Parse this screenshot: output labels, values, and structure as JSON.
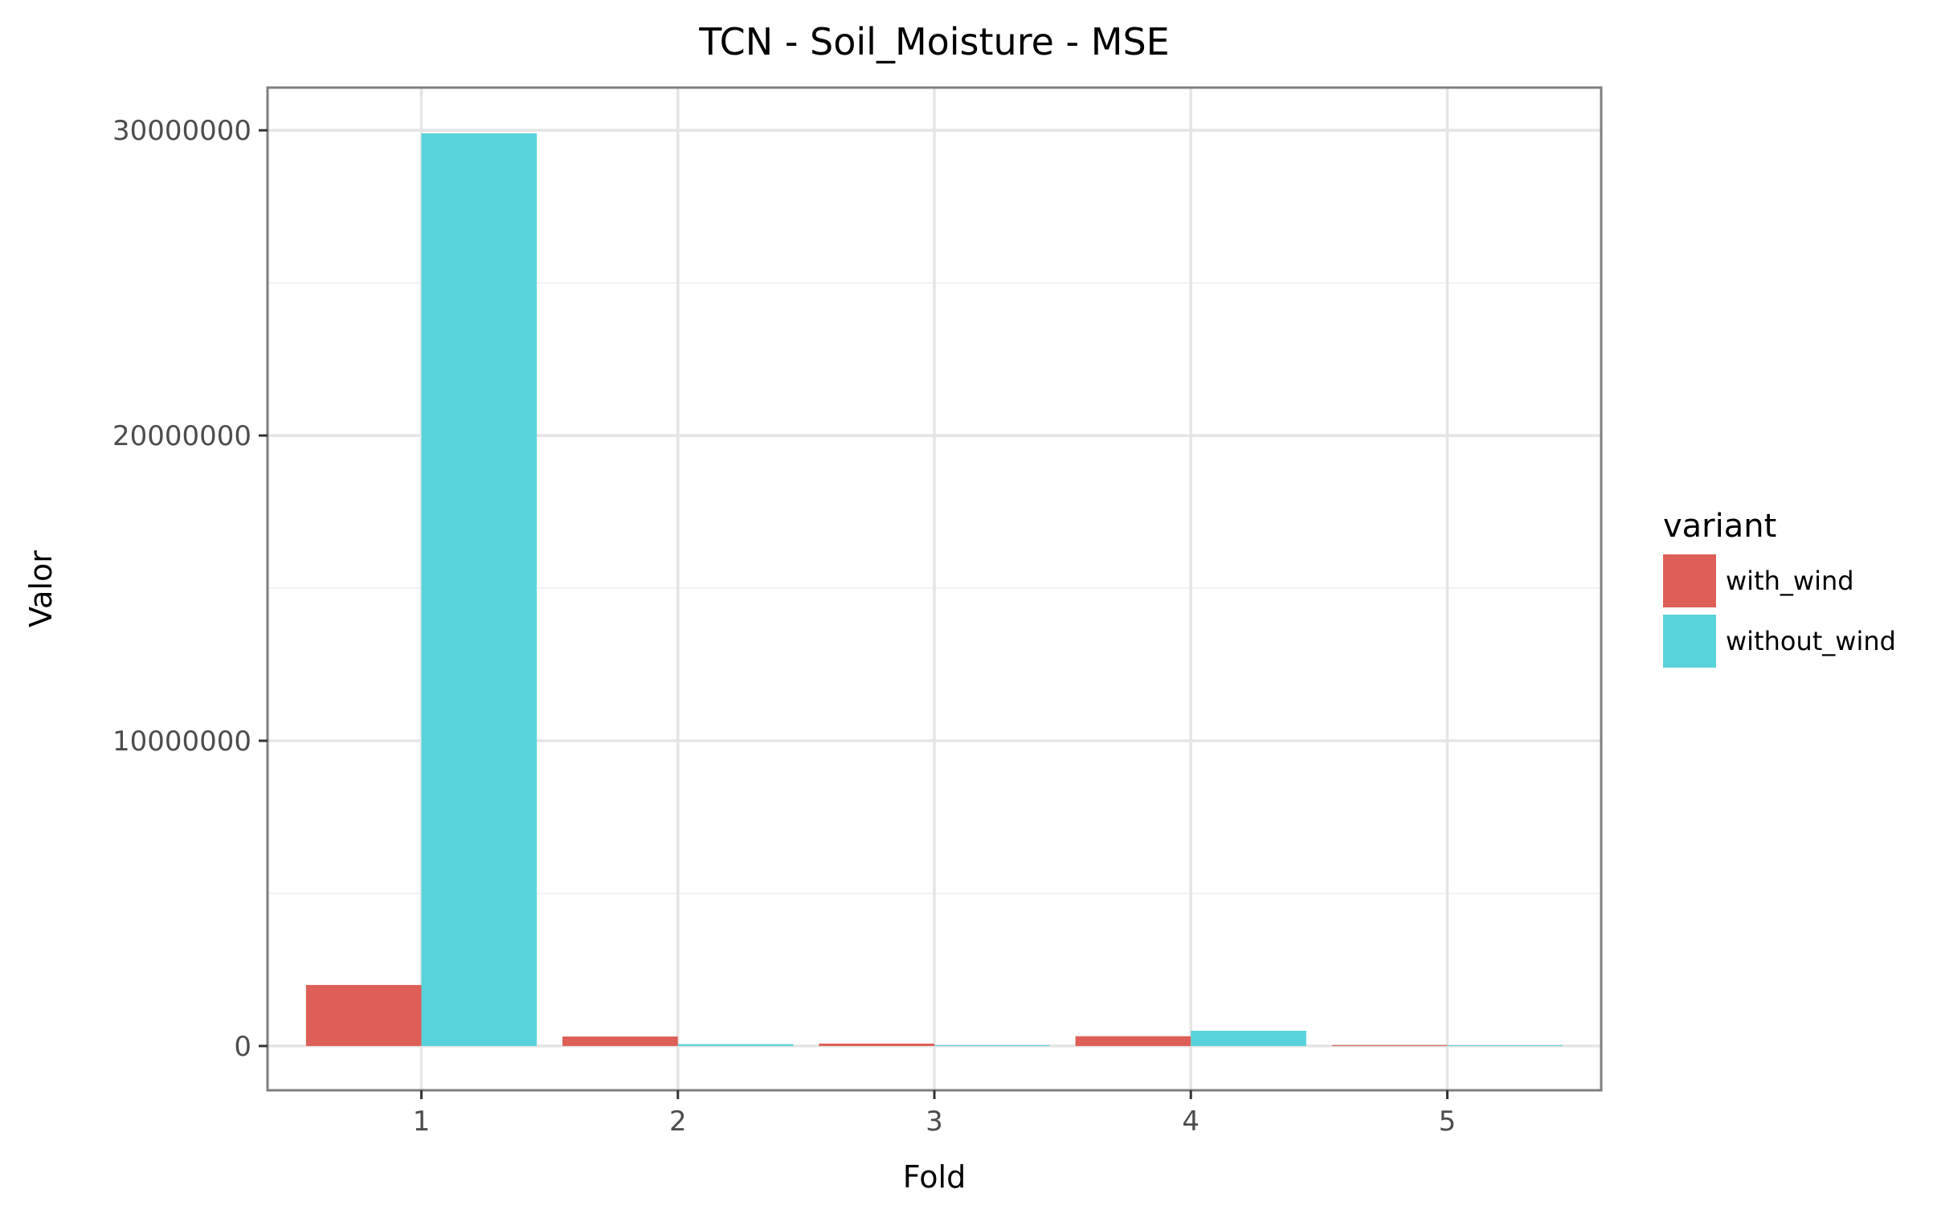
{
  "chart_data": {
    "type": "bar",
    "title": "TCN - Soil_Moisture - MSE",
    "xlabel": "Fold",
    "ylabel": "Valor",
    "categories": [
      "1",
      "2",
      "3",
      "4",
      "5"
    ],
    "series": [
      {
        "name": "with_wind",
        "color": "#dd5f57",
        "values": [
          2000000,
          310000,
          80000,
          320000,
          30000
        ]
      },
      {
        "name": "without_wind",
        "color": "#58d3db",
        "values": [
          29900000,
          60000,
          30000,
          500000,
          20000
        ]
      }
    ],
    "yticks": [
      0,
      10000000,
      20000000,
      30000000
    ],
    "ytick_labels": [
      "0",
      "10000000",
      "20000000",
      "30000000"
    ],
    "ylim": [
      -1450000,
      31400000
    ],
    "legend": {
      "title": "variant",
      "position": "right"
    },
    "grid": true
  }
}
